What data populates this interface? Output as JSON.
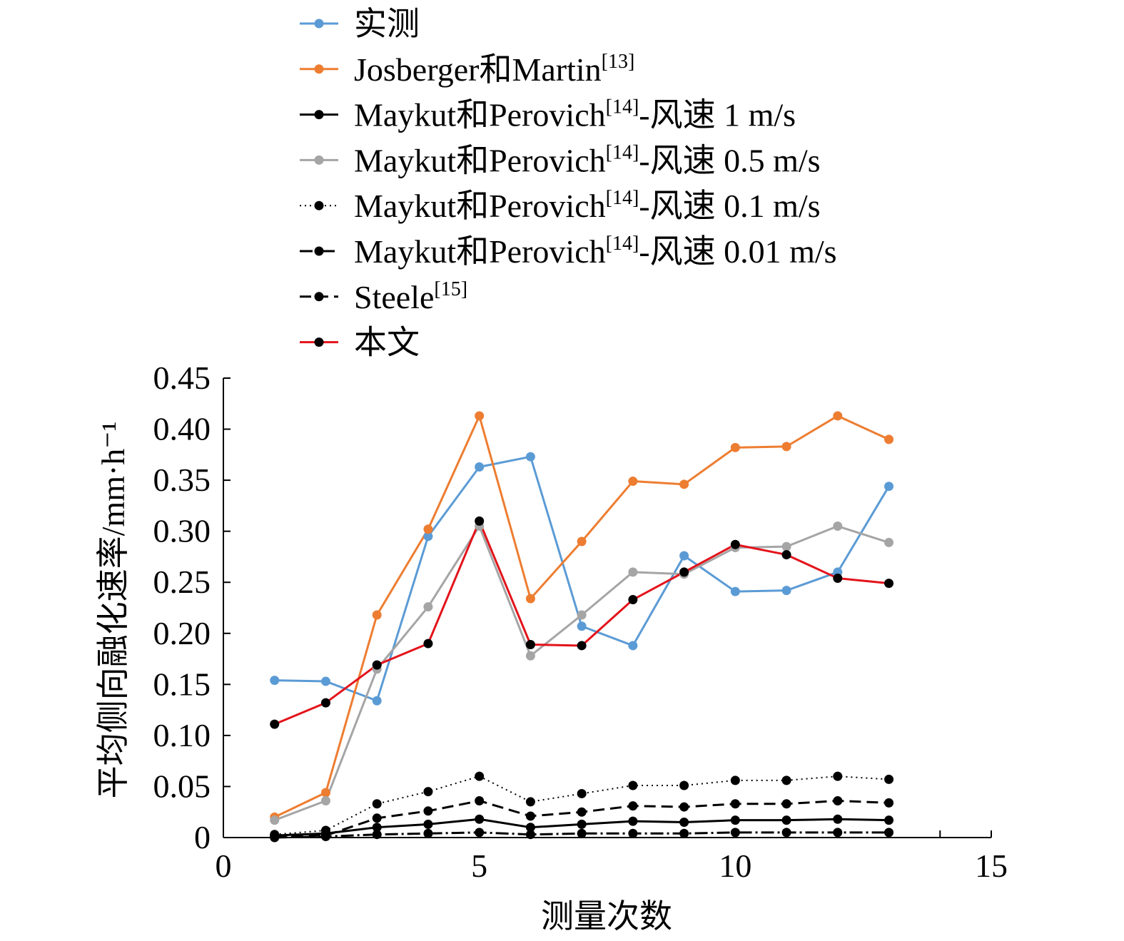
{
  "chart_data": {
    "type": "line",
    "title": "",
    "xlabel": "测量次数",
    "ylabel": "平均侧向融化速率/mm·h⁻¹",
    "xlim": [
      0,
      15
    ],
    "ylim": [
      0,
      0.45
    ],
    "xticks": [
      "0",
      "5",
      "10",
      "15"
    ],
    "yticks": [
      "0",
      "0.05",
      "0.10",
      "0.15",
      "0.20",
      "0.25",
      "0.30",
      "0.35",
      "0.40",
      "0.45"
    ],
    "grid": false,
    "legend_position": "top",
    "x": [
      1,
      2,
      3,
      4,
      5,
      6,
      7,
      8,
      9,
      10,
      11,
      12,
      13
    ],
    "series": [
      {
        "name": "实测",
        "sup": "",
        "color": "#5b9bd5",
        "dash": "",
        "values": [
          0.154,
          0.153,
          0.134,
          0.295,
          0.363,
          0.373,
          0.207,
          0.188,
          0.276,
          0.241,
          0.242,
          0.26,
          0.344
        ]
      },
      {
        "name": "Josberger和Martin",
        "sup": "[13]",
        "color": "#ed7d31",
        "dash": "",
        "values": [
          0.02,
          0.044,
          0.218,
          0.302,
          0.413,
          0.234,
          0.29,
          0.349,
          0.346,
          0.382,
          0.383,
          0.413,
          0.39
        ]
      },
      {
        "name": "Maykut和Perovich",
        "sup": "[14]",
        "suffix": "-风速 1 m/s",
        "color": "#000000",
        "dash": "",
        "values": [
          0.002,
          0.004,
          0.01,
          0.013,
          0.018,
          0.01,
          0.013,
          0.016,
          0.015,
          0.017,
          0.017,
          0.018,
          0.017
        ]
      },
      {
        "name": "Maykut和Perovich",
        "sup": "[14]",
        "suffix": "-风速 0.5 m/s",
        "color": "#a5a5a5",
        "dash": "",
        "values": [
          0.017,
          0.036,
          0.165,
          0.226,
          0.305,
          0.178,
          0.218,
          0.26,
          0.258,
          0.284,
          0.285,
          0.305,
          0.289
        ]
      },
      {
        "name": "Maykut和Perovich",
        "sup": "[14]",
        "suffix": "-风速 0.1 m/s",
        "color": "#000000",
        "dash": "2,5",
        "values": [
          0.003,
          0.007,
          0.033,
          0.045,
          0.06,
          0.035,
          0.043,
          0.051,
          0.051,
          0.056,
          0.056,
          0.06,
          0.057
        ]
      },
      {
        "name": "Maykut和Perovich",
        "sup": "[14]",
        "suffix": "-风速 0.01 m/s",
        "color": "#000000",
        "dash": "18,5,3,5",
        "values": [
          0.0,
          0.001,
          0.003,
          0.004,
          0.005,
          0.003,
          0.004,
          0.004,
          0.004,
          0.005,
          0.005,
          0.005,
          0.005
        ]
      },
      {
        "name": "Steele",
        "sup": "[15]",
        "color": "#000000",
        "dash": "16,8",
        "values": [
          0.001,
          0.002,
          0.019,
          0.026,
          0.036,
          0.021,
          0.025,
          0.031,
          0.03,
          0.033,
          0.033,
          0.036,
          0.034
        ]
      },
      {
        "name": "本文",
        "sup": "",
        "color": "#e3131b",
        "dash": "",
        "values": [
          0.111,
          0.132,
          0.169,
          0.19,
          0.31,
          0.189,
          0.188,
          0.233,
          0.26,
          0.287,
          0.277,
          0.254,
          0.249
        ]
      }
    ]
  }
}
